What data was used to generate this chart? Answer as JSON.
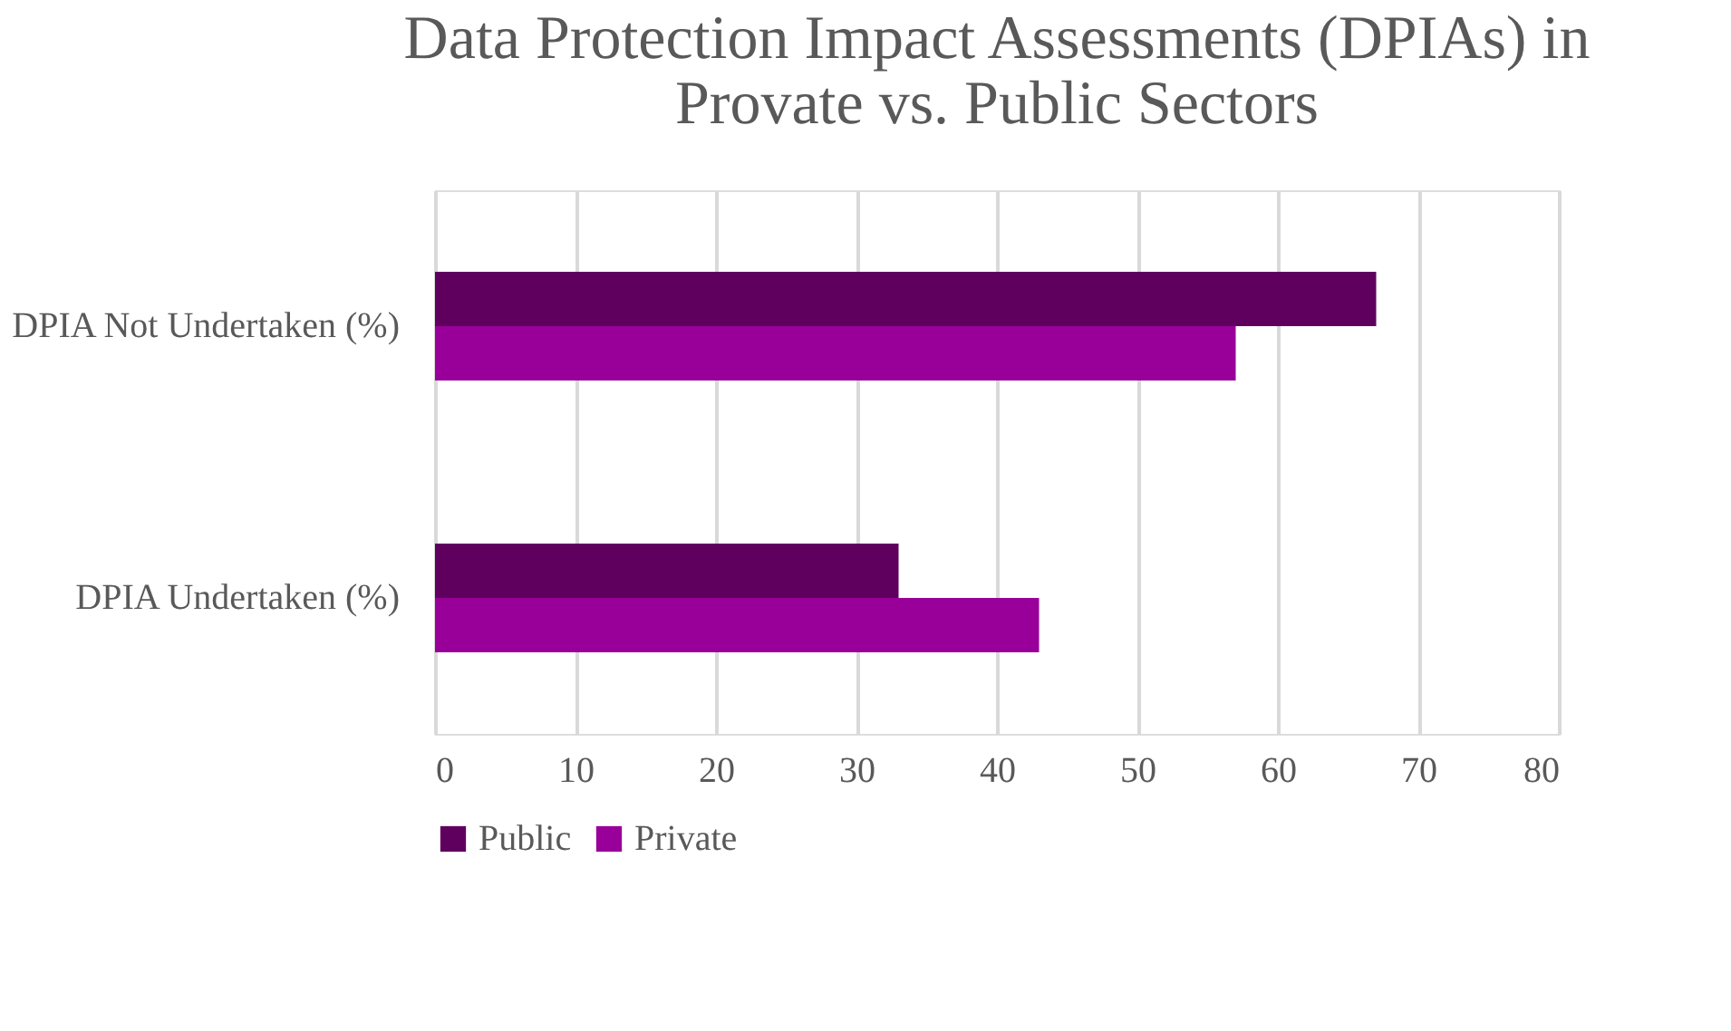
{
  "chart_data": {
    "type": "bar",
    "orientation": "horizontal",
    "title": "Data Protection Impact Assessments (DPIAs) in\nProvate vs. Public Sectors",
    "categories": [
      "DPIA Not Undertaken (%)",
      "DPIA Undertaken (%)"
    ],
    "series": [
      {
        "name": "Public",
        "color": "#5f005f",
        "values": [
          67,
          33
        ]
      },
      {
        "name": "Private",
        "color": "#990099",
        "values": [
          57,
          43
        ]
      }
    ],
    "xlim": [
      0,
      80
    ],
    "xticks": [
      0,
      10,
      20,
      30,
      40,
      50,
      60,
      70,
      80
    ],
    "grid": "x",
    "legend": "bottom"
  }
}
